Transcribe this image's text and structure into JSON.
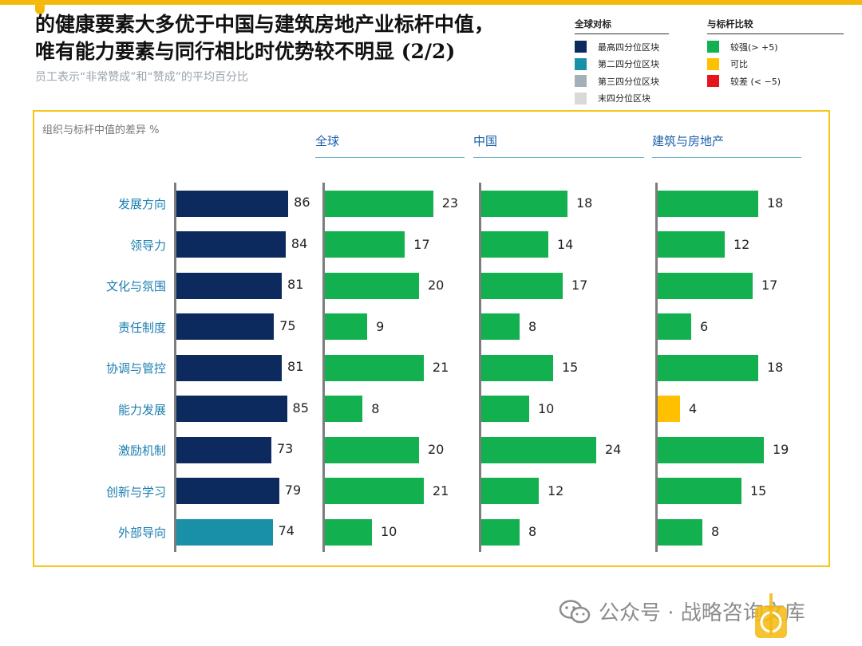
{
  "header": {
    "title_line1": "的健康要素大多优于中国与建筑房地产业标杆中值，",
    "title_line2": "唯有能力要素与同行相比时优势较不明显 (2/2)",
    "subtitle": "员工表示“非常赞成”和“赞成”的平均百分比"
  },
  "legend_global": {
    "heading": "全球对标",
    "items": [
      {
        "label": "最高四分位区块",
        "color": "#0D2A5E"
      },
      {
        "label": "第二四分位区块",
        "color": "#1A8FA8"
      },
      {
        "label": "第三四分位区块",
        "color": "#A4B0B8"
      },
      {
        "label": "末四分位区块",
        "color": "#D9D9D9"
      }
    ]
  },
  "legend_compare": {
    "heading": "与标杆比较",
    "items": [
      {
        "label": "较强(> +5)",
        "color": "#12B04F"
      },
      {
        "label": "可比",
        "color": "#FFC000"
      },
      {
        "label": "较差 (< −5)",
        "color": "#E8141C"
      }
    ]
  },
  "chart_note": "组织与标杆中值的差异 %",
  "watermark": {
    "text": "公众号 · 战略咨询文库"
  },
  "chart_data": {
    "type": "bar",
    "orientation": "horizontal",
    "categories": [
      "发展方向",
      "领导力",
      "文化与氛围",
      "责任制度",
      "协调与管控",
      "能力发展",
      "激励机制",
      "创新与学习",
      "外部导向"
    ],
    "scores": {
      "values": [
        86,
        84,
        81,
        75,
        81,
        85,
        73,
        79,
        74
      ],
      "quartile": [
        "最高四分位区块",
        "最高四分位区块",
        "最高四分位区块",
        "最高四分位区块",
        "最高四分位区块",
        "最高四分位区块",
        "最高四分位区块",
        "最高四分位区块",
        "第二四分位区块"
      ]
    },
    "series": [
      {
        "name": "全球",
        "values": [
          23,
          17,
          20,
          9,
          21,
          8,
          20,
          21,
          10
        ],
        "rating": [
          "较强(> +5)",
          "较强(> +5)",
          "较强(> +5)",
          "较强(> +5)",
          "较强(> +5)",
          "较强(> +5)",
          "较强(> +5)",
          "较强(> +5)",
          "较强(> +5)"
        ]
      },
      {
        "name": "中国",
        "values": [
          18,
          14,
          17,
          8,
          15,
          10,
          24,
          12,
          8
        ],
        "rating": [
          "较强(> +5)",
          "较强(> +5)",
          "较强(> +5)",
          "较强(> +5)",
          "较强(> +5)",
          "较强(> +5)",
          "较强(> +5)",
          "较强(> +5)",
          "较强(> +5)"
        ]
      },
      {
        "name": "建筑与房地产",
        "values": [
          18,
          12,
          17,
          6,
          18,
          4,
          19,
          15,
          8
        ],
        "rating": [
          "较强(> +5)",
          "较强(> +5)",
          "较强(> +5)",
          "较强(> +5)",
          "较强(> +5)",
          "可比",
          "较强(> +5)",
          "较强(> +5)",
          "较强(> +5)"
        ]
      }
    ],
    "xlabel": "组织与标杆中值的差异 %",
    "ylabel": ""
  }
}
